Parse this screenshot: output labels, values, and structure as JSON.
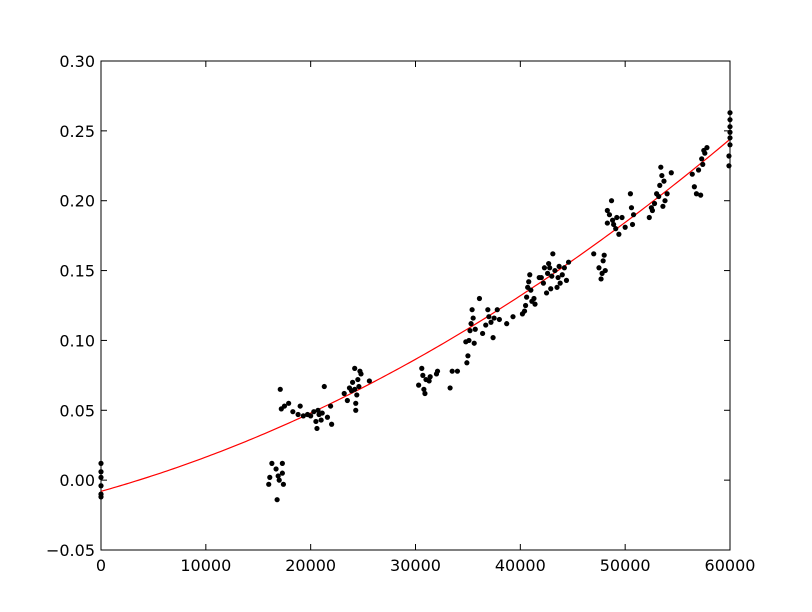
{
  "chart_data": {
    "type": "scatter",
    "title": "",
    "xlabel": "",
    "ylabel": "",
    "xlim": [
      0,
      60000
    ],
    "ylim": [
      -0.05,
      0.3
    ],
    "grid": false,
    "legend": "none",
    "xticks": [
      0,
      10000,
      20000,
      30000,
      40000,
      50000,
      60000
    ],
    "xtick_labels": [
      "0",
      "10000",
      "20000",
      "30000",
      "40000",
      "50000",
      "60000"
    ],
    "yticks": [
      -0.05,
      0.0,
      0.05,
      0.1,
      0.15,
      0.2,
      0.25,
      0.3
    ],
    "ytick_labels": [
      "−0.05",
      "0.00",
      "0.05",
      "0.10",
      "0.15",
      "0.20",
      "0.25",
      "0.30"
    ],
    "colors": {
      "points": "#000000",
      "fit": "#ff0000",
      "frame": "#000000"
    },
    "series": [
      {
        "kind": "points",
        "x": [
          0,
          0,
          0,
          0,
          0,
          0,
          16000,
          16100,
          16300,
          16700,
          16800,
          16900,
          17000,
          17100,
          17200,
          17300,
          17300,
          17400,
          17500,
          17900,
          18300,
          18800,
          19000,
          19300,
          19700,
          20000,
          20300,
          20500,
          20600,
          20700,
          20800,
          21000,
          21100,
          21300,
          21600,
          21900,
          22000,
          23200,
          23500,
          23700,
          23900,
          24000,
          24200,
          24200,
          24300,
          24300,
          24400,
          24500,
          24600,
          24700,
          24800,
          25600,
          30300,
          30600,
          30700,
          30800,
          30900,
          31000,
          31300,
          31400,
          32000,
          32100,
          33300,
          33500,
          34000,
          34800,
          34900,
          35000,
          35100,
          35200,
          35300,
          35400,
          35500,
          35600,
          35700,
          36100,
          36400,
          36700,
          36900,
          37000,
          37200,
          37400,
          37500,
          37800,
          38000,
          38700,
          39300,
          40200,
          40400,
          40500,
          40600,
          40700,
          40800,
          40900,
          41000,
          41100,
          41300,
          41400,
          41800,
          42000,
          42200,
          42300,
          42500,
          42600,
          42700,
          42800,
          42900,
          43000,
          43100,
          43300,
          43500,
          43600,
          43700,
          43800,
          44000,
          44200,
          44400,
          44600,
          47000,
          47500,
          47700,
          47800,
          47900,
          48000,
          48100,
          48300,
          48300,
          48500,
          48700,
          48800,
          48900,
          49100,
          49200,
          49400,
          49700,
          50000,
          50500,
          50600,
          50700,
          50800,
          52300,
          52500,
          52600,
          52800,
          53000,
          53200,
          53300,
          53400,
          53500,
          53600,
          53700,
          53800,
          54000,
          54400,
          56400,
          56600,
          56800,
          57000,
          57200,
          57300,
          57400,
          57500,
          57600,
          57800,
          59900,
          59900,
          60000,
          60000,
          60000,
          60000,
          60000,
          60000
        ],
        "y": [
          0.012,
          0.006,
          0.002,
          -0.004,
          -0.01,
          -0.012,
          -0.003,
          0.002,
          0.012,
          0.008,
          -0.014,
          0.003,
          0.0,
          0.065,
          0.051,
          0.012,
          0.005,
          -0.003,
          0.053,
          0.055,
          0.049,
          0.047,
          0.053,
          0.046,
          0.047,
          0.046,
          0.049,
          0.042,
          0.037,
          0.05,
          0.047,
          0.043,
          0.048,
          0.067,
          0.045,
          0.053,
          0.04,
          0.062,
          0.057,
          0.066,
          0.064,
          0.07,
          0.065,
          0.08,
          0.055,
          0.05,
          0.061,
          0.072,
          0.067,
          0.078,
          0.076,
          0.071,
          0.068,
          0.08,
          0.075,
          0.065,
          0.062,
          0.072,
          0.071,
          0.074,
          0.076,
          0.078,
          0.066,
          0.078,
          0.078,
          0.099,
          0.084,
          0.089,
          0.1,
          0.107,
          0.112,
          0.122,
          0.116,
          0.098,
          0.108,
          0.13,
          0.105,
          0.111,
          0.122,
          0.117,
          0.113,
          0.102,
          0.116,
          0.122,
          0.115,
          0.112,
          0.117,
          0.119,
          0.121,
          0.125,
          0.131,
          0.138,
          0.142,
          0.147,
          0.136,
          0.128,
          0.13,
          0.126,
          0.145,
          0.145,
          0.141,
          0.152,
          0.134,
          0.148,
          0.155,
          0.152,
          0.137,
          0.146,
          0.162,
          0.15,
          0.138,
          0.145,
          0.153,
          0.141,
          0.147,
          0.152,
          0.143,
          0.156,
          0.162,
          0.152,
          0.144,
          0.148,
          0.157,
          0.161,
          0.15,
          0.184,
          0.193,
          0.19,
          0.2,
          0.186,
          0.183,
          0.18,
          0.188,
          0.176,
          0.188,
          0.181,
          0.205,
          0.195,
          0.183,
          0.19,
          0.188,
          0.195,
          0.193,
          0.198,
          0.205,
          0.203,
          0.211,
          0.224,
          0.218,
          0.196,
          0.214,
          0.2,
          0.205,
          0.22,
          0.219,
          0.21,
          0.205,
          0.222,
          0.204,
          0.23,
          0.226,
          0.236,
          0.234,
          0.238,
          0.225,
          0.232,
          0.24,
          0.245,
          0.249,
          0.253,
          0.258,
          0.263
        ]
      },
      {
        "kind": "fit",
        "model": "y = a + b*x + c*x^2",
        "coefficients": {
          "a": -0.008,
          "b": 2.1e-06,
          "c": 3.5e-11
        }
      }
    ]
  }
}
